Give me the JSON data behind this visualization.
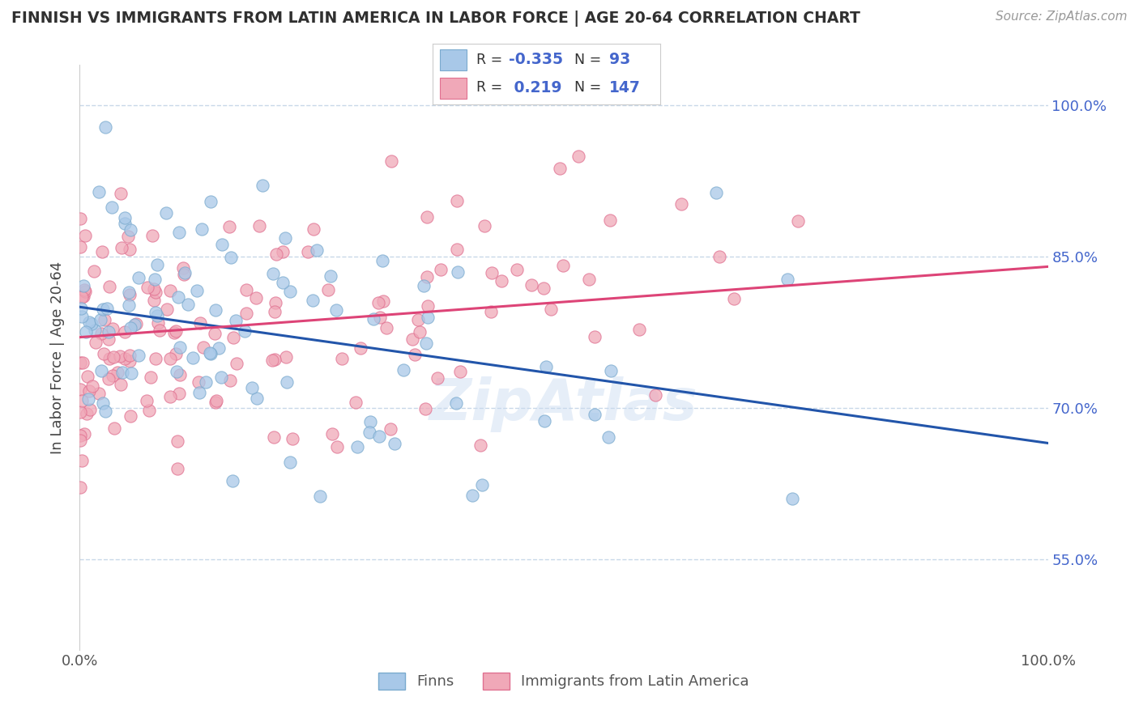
{
  "title": "FINNISH VS IMMIGRANTS FROM LATIN AMERICA IN LABOR FORCE | AGE 20-64 CORRELATION CHART",
  "source_text": "Source: ZipAtlas.com",
  "ylabel": "In Labor Force | Age 20-64",
  "x_min": 0.0,
  "x_max": 1.0,
  "y_min": 0.46,
  "y_max": 1.04,
  "y_ticks": [
    0.55,
    0.7,
    0.85,
    1.0
  ],
  "y_tick_labels": [
    "55.0%",
    "70.0%",
    "85.0%",
    "100.0%"
  ],
  "x_ticks": [
    0.0,
    1.0
  ],
  "x_tick_labels": [
    "0.0%",
    "100.0%"
  ],
  "finns_color": "#a8c8e8",
  "finns_edge_color": "#7aaace",
  "immigrants_color": "#f0a8b8",
  "immigrants_edge_color": "#e07090",
  "finns_line_color": "#2255aa",
  "immigrants_line_color": "#dd4477",
  "background_color": "#ffffff",
  "grid_color": "#c8d8e8",
  "title_color": "#303030",
  "legend_text_color": "#4466cc",
  "finn_R": -0.335,
  "finn_N": 93,
  "immigrant_R": 0.219,
  "immigrant_N": 147,
  "finn_line_x0": 0.0,
  "finn_line_y0": 0.8,
  "finn_line_x1": 1.0,
  "finn_line_y1": 0.665,
  "imm_line_x0": 0.0,
  "imm_line_y0": 0.77,
  "imm_line_x1": 1.0,
  "imm_line_y1": 0.84,
  "watermark_text": "ZipAtlas",
  "watermark_color": "#c8daf0",
  "watermark_alpha": 0.45,
  "legend_box_color": "#4466cc",
  "legend_box_bg": "#ffffff"
}
